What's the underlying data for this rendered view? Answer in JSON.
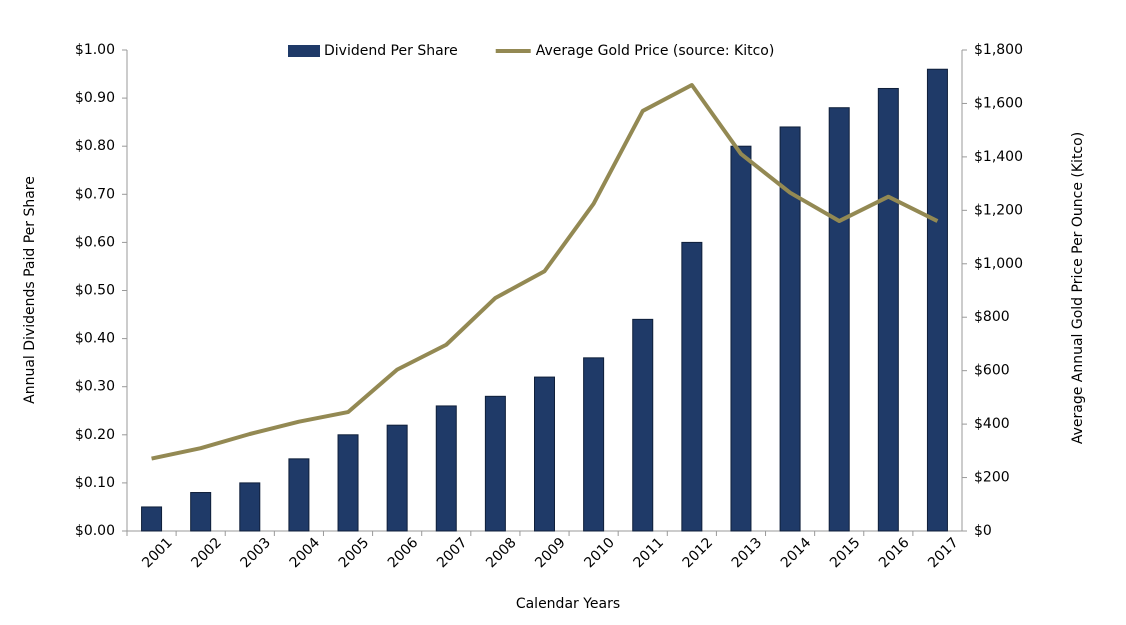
{
  "chart_data": {
    "type": "bar",
    "categories": [
      "2001",
      "2002",
      "2003",
      "2004",
      "2005",
      "2006",
      "2007",
      "2008",
      "2009",
      "2010",
      "2011",
      "2012",
      "2013",
      "2014",
      "2015",
      "2016",
      "2017"
    ],
    "series": [
      {
        "name": "Dividend Per Share",
        "type": "bar",
        "color": "#1f3a68",
        "values": [
          0.05,
          0.08,
          0.1,
          0.15,
          0.2,
          0.22,
          0.26,
          0.28,
          0.32,
          0.36,
          0.44,
          0.6,
          0.8,
          0.84,
          0.88,
          0.92,
          0.96
        ]
      },
      {
        "name": "Average Gold Price (source: Kitco)",
        "type": "line",
        "axis": "y2",
        "color": "#938953",
        "values": [
          271,
          310,
          363,
          409,
          445,
          604,
          697,
          872,
          972,
          1225,
          1572,
          1669,
          1411,
          1266,
          1160,
          1251,
          1160
        ]
      }
    ],
    "x_label": "Calendar Years",
    "y_label": "Annual Dividends Paid Per Share",
    "y2_label": "Average Annual Gold Price Per Ounce (Kitco)",
    "ylim": [
      0,
      1
    ],
    "yticks": [
      {
        "value": 0,
        "label": "$0.00"
      },
      {
        "value": 0.1,
        "label": "$0.10"
      },
      {
        "value": 0.2,
        "label": "$0.20"
      },
      {
        "value": 0.3,
        "label": "$0.30"
      },
      {
        "value": 0.4,
        "label": "$0.40"
      },
      {
        "value": 0.5,
        "label": "$0.50"
      },
      {
        "value": 0.6,
        "label": "$0.60"
      },
      {
        "value": 0.7,
        "label": "$0.70"
      },
      {
        "value": 0.8,
        "label": "$0.80"
      },
      {
        "value": 0.9,
        "label": "$0.90"
      },
      {
        "value": 1,
        "label": "$1.00"
      }
    ],
    "y2lim": [
      0,
      1800
    ],
    "y2ticks": [
      {
        "value": 0,
        "label": "$0"
      },
      {
        "value": 200,
        "label": "$200"
      },
      {
        "value": 400,
        "label": "$400"
      },
      {
        "value": 600,
        "label": "$600"
      },
      {
        "value": 800,
        "label": "$800"
      },
      {
        "value": 1000,
        "label": "$1,000"
      },
      {
        "value": 1200,
        "label": "$1,200"
      },
      {
        "value": 1400,
        "label": "$1,400"
      },
      {
        "value": 1600,
        "label": "$1,600"
      },
      {
        "value": 1800,
        "label": "$1,800"
      }
    ],
    "legend": "top",
    "grid": false
  }
}
